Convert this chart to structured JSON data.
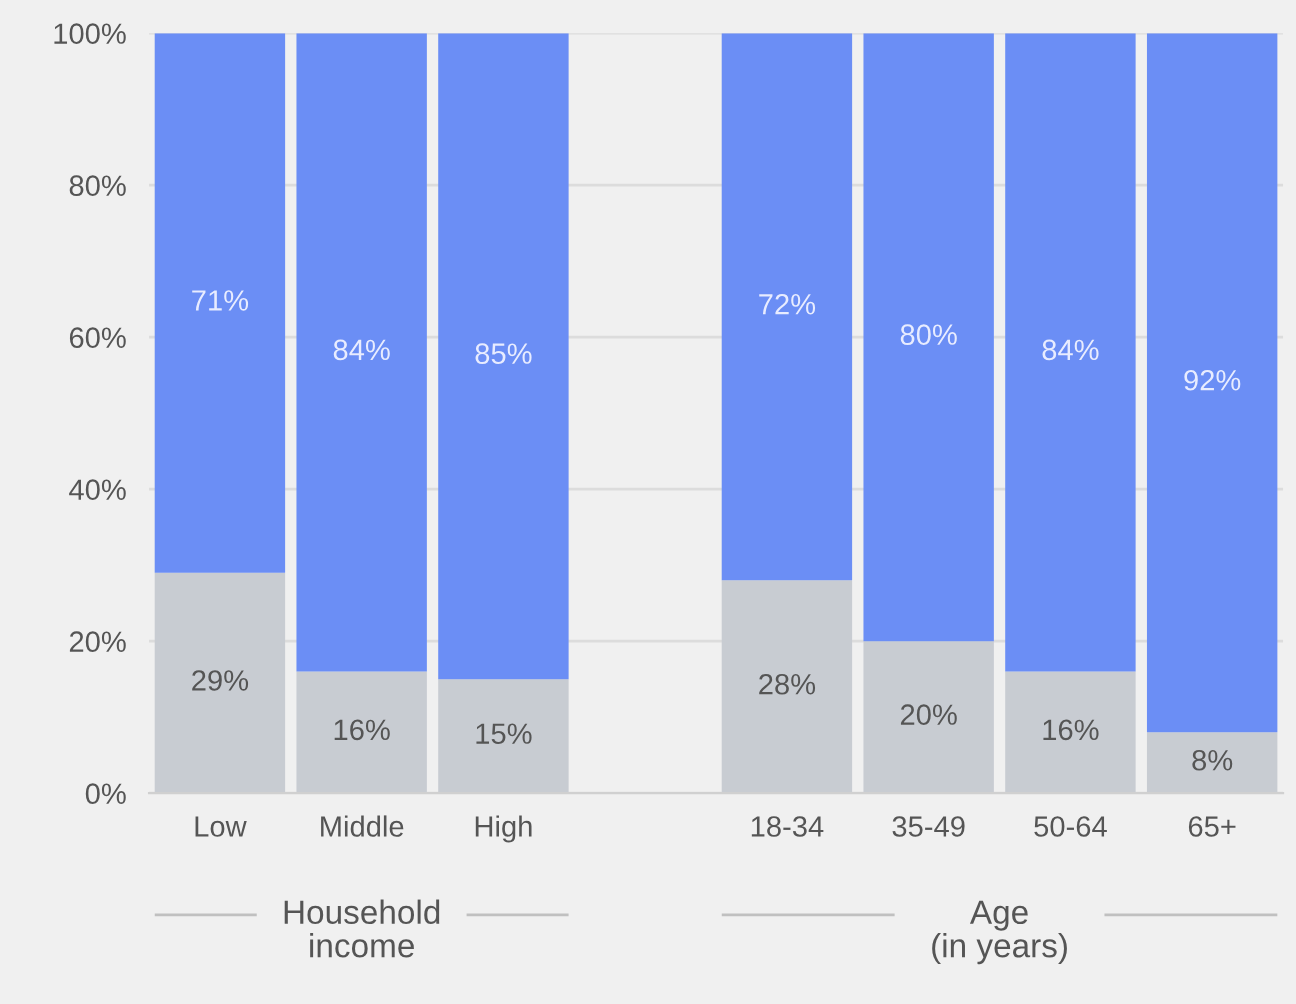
{
  "chart_data": {
    "type": "bar",
    "stacked": true,
    "categories": [
      "Low",
      "Middle",
      "High",
      null,
      "18-34",
      "35-49",
      "50-64",
      "65+"
    ],
    "series": [
      {
        "color": "#c8ccd2",
        "values": [
          29,
          16,
          15,
          null,
          28,
          20,
          16,
          8
        ],
        "value_labels": [
          "29%",
          "16%",
          "15%",
          null,
          "28%",
          "20%",
          "16%",
          "8%"
        ]
      },
      {
        "color": "#6b8ef5",
        "values": [
          71,
          84,
          85,
          null,
          72,
          80,
          84,
          92
        ],
        "value_labels": [
          "71%",
          "84%",
          "85%",
          null,
          "72%",
          "80%",
          "84%",
          "92%"
        ]
      }
    ],
    "ylim": [
      0,
      100
    ],
    "yticks": [
      {
        "value": 0,
        "label": "0%"
      },
      {
        "value": 20,
        "label": "20%"
      },
      {
        "value": 40,
        "label": "40%"
      },
      {
        "value": 60,
        "label": "60%"
      },
      {
        "value": 80,
        "label": "80%"
      },
      {
        "value": 100,
        "label": "100%"
      }
    ],
    "grid": "y",
    "annotations": [
      "Household\nincome",
      "Age\n(in years)"
    ]
  }
}
